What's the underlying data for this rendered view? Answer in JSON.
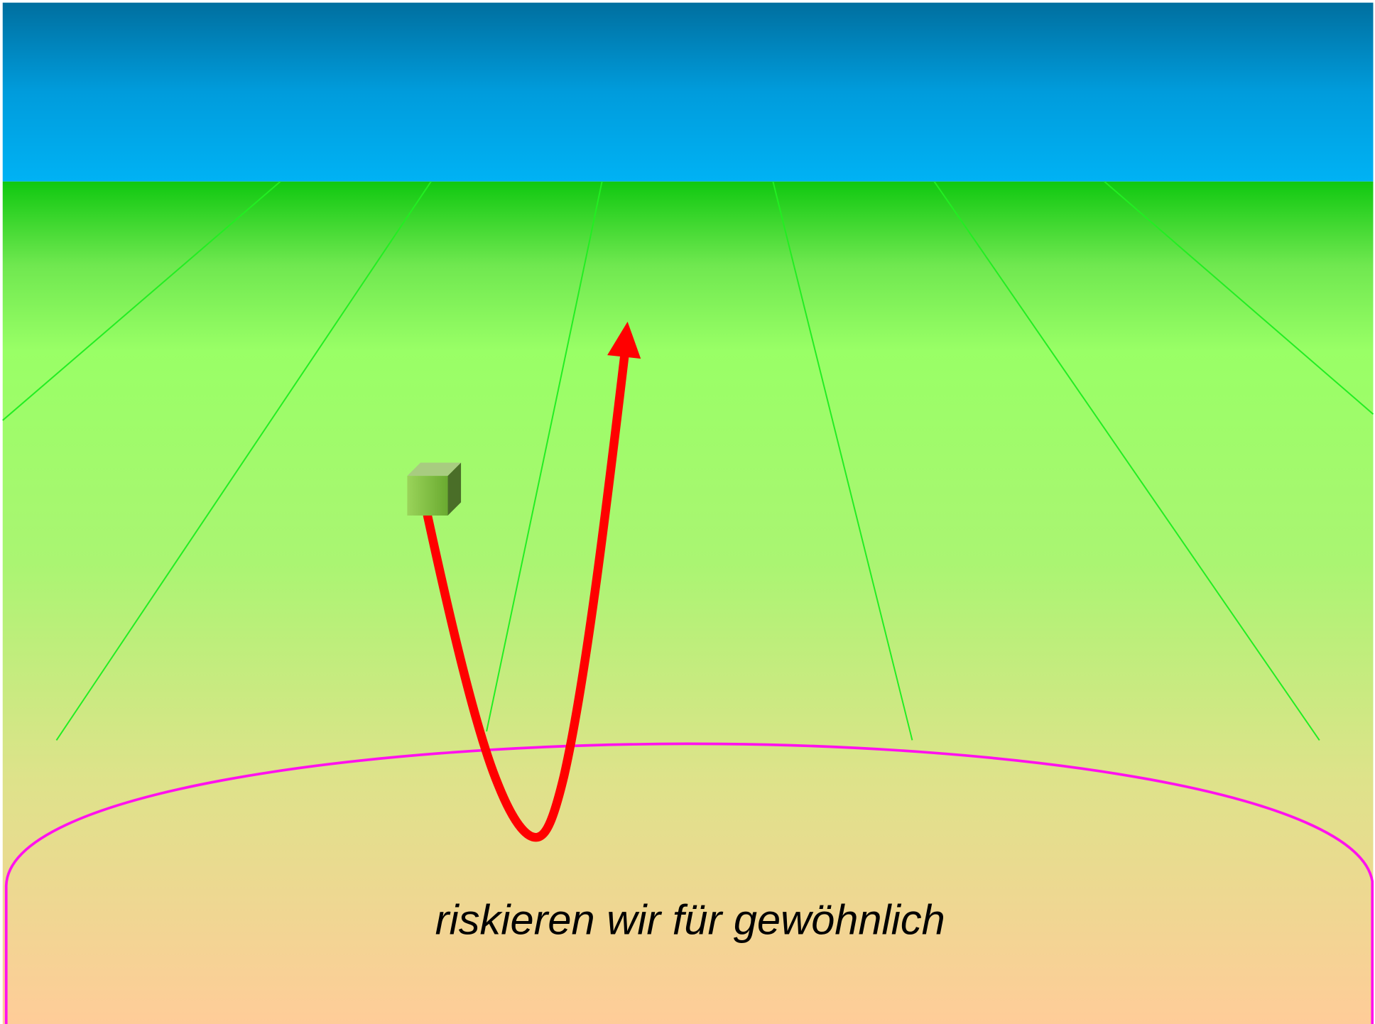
{
  "caption": "riskieren wir für gewöhnlich"
}
